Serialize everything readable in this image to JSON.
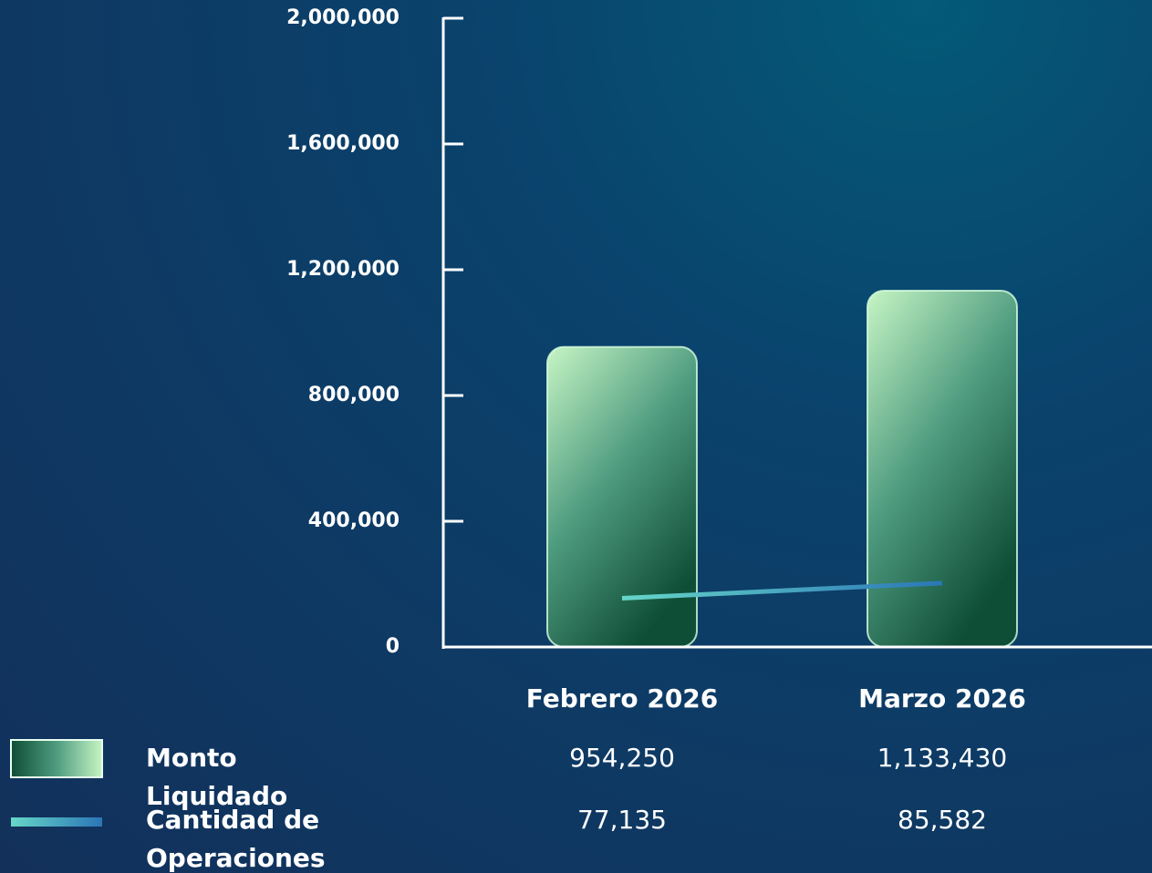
{
  "chart_data": {
    "type": "bar_line",
    "categories": [
      "Febrero 2026",
      "Marzo 2026"
    ],
    "series": [
      {
        "name": "Monto Liquidado",
        "type": "bar",
        "color": "#3f9a78",
        "values": [
          954250,
          1133430
        ],
        "value_labels": [
          "954,250",
          "1,133,430"
        ]
      },
      {
        "name": "Cantidad de Operaciones",
        "type": "line",
        "axis": "y2",
        "color": "#3aa6c8",
        "values": [
          77135,
          85582
        ],
        "value_labels": [
          "77,135",
          "85,582"
        ]
      }
    ],
    "ylim": [
      0,
      2000000
    ],
    "yticks": [
      {
        "value": 0,
        "label": "0"
      },
      {
        "value": 400000,
        "label": "400,000"
      },
      {
        "value": 800000,
        "label": "800,000"
      },
      {
        "value": 1200000,
        "label": "1,200,000"
      },
      {
        "value": 1600000,
        "label": "1,600,000"
      },
      {
        "value": 2000000,
        "label": "2,000,000"
      }
    ],
    "y2lim": [
      50000,
      400000
    ]
  }
}
